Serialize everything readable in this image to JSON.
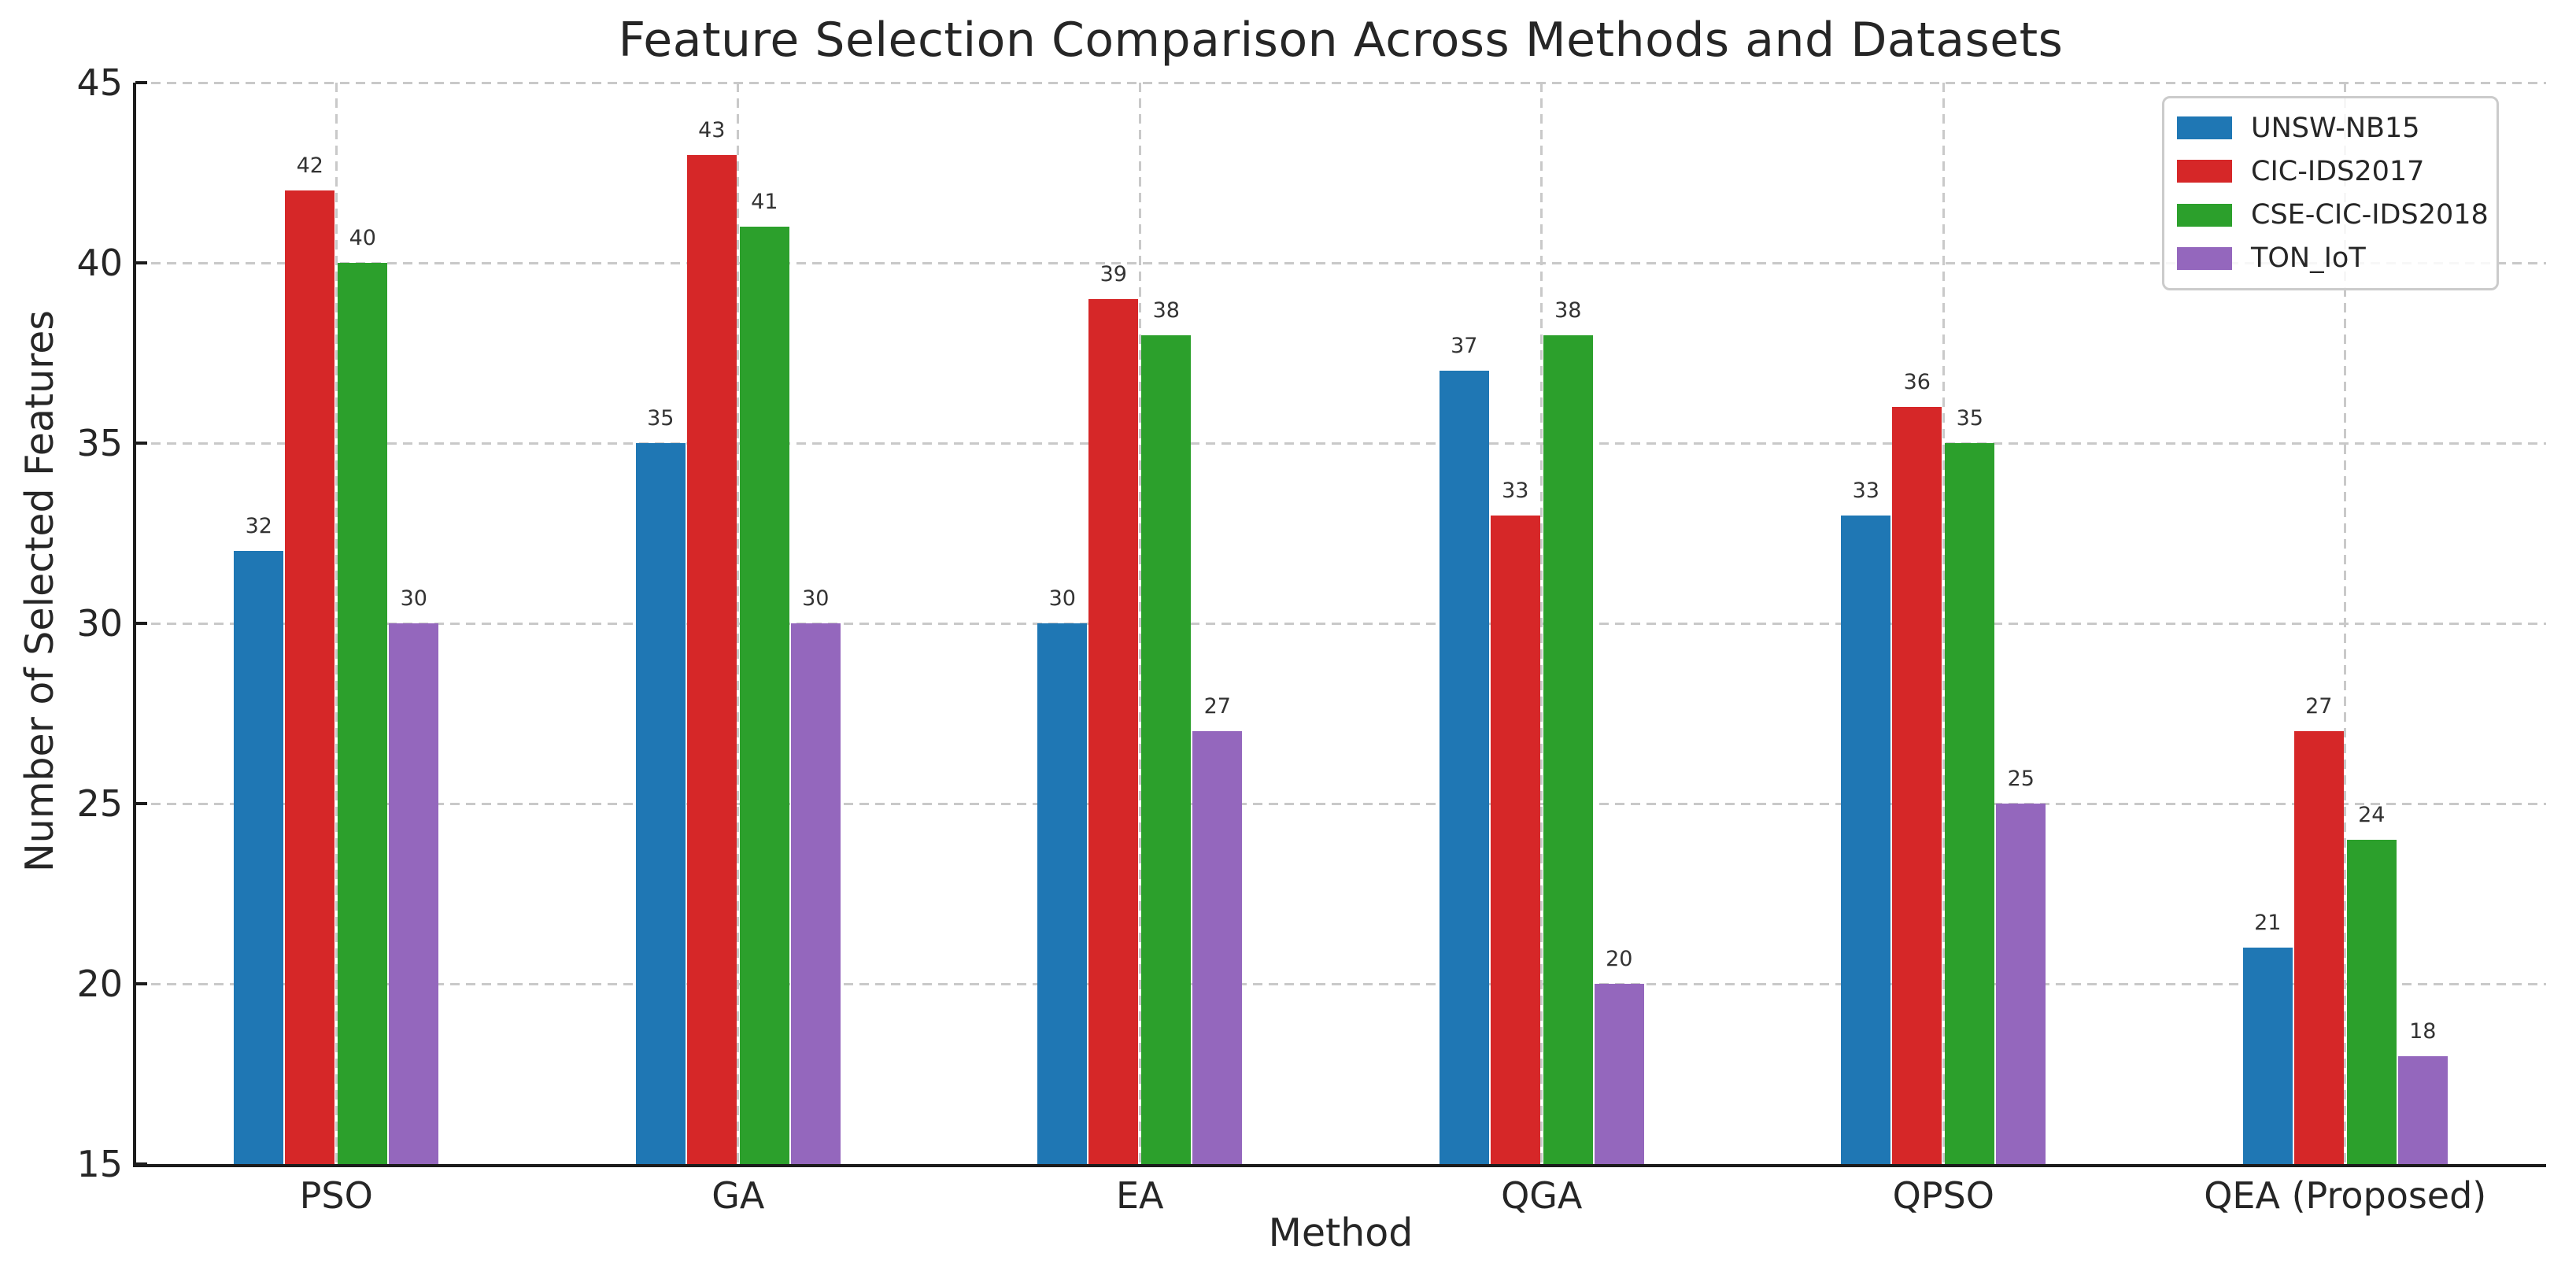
{
  "chart_data": {
    "type": "bar",
    "title": "Feature Selection Comparison Across Methods and Datasets",
    "xlabel": "Method",
    "ylabel": "Number of Selected Features",
    "categories": [
      "PSO",
      "GA",
      "EA",
      "QGA",
      "QPSO",
      "QEA (Proposed)"
    ],
    "series": [
      {
        "name": "UNSW-NB15",
        "color": "#1f77b4",
        "values": [
          32,
          35,
          30,
          37,
          33,
          21
        ]
      },
      {
        "name": "CIC-IDS2017",
        "color": "#d62728",
        "values": [
          42,
          43,
          39,
          33,
          36,
          27
        ]
      },
      {
        "name": "CSE-CIC-IDS2018",
        "color": "#2ca02c",
        "values": [
          40,
          41,
          38,
          38,
          35,
          24
        ]
      },
      {
        "name": "TON_IoT",
        "color": "#9467bd",
        "values": [
          30,
          30,
          27,
          20,
          25,
          18
        ]
      }
    ],
    "ylim": [
      15,
      45
    ],
    "yticks": [
      15,
      20,
      25,
      30,
      35,
      40,
      45
    ],
    "bar_value_labels": true,
    "grid": {
      "visible": true,
      "style": "dashed",
      "color": "#c9c9c9",
      "horizontal": true,
      "vertical": true
    },
    "legend": {
      "position": "upper right",
      "border_color": "#cbcbcb"
    }
  },
  "style_colors": {
    "background": "#ffffff",
    "text": "#262626",
    "spine": "#1c1c1c",
    "bar_label_text": "#333333"
  }
}
